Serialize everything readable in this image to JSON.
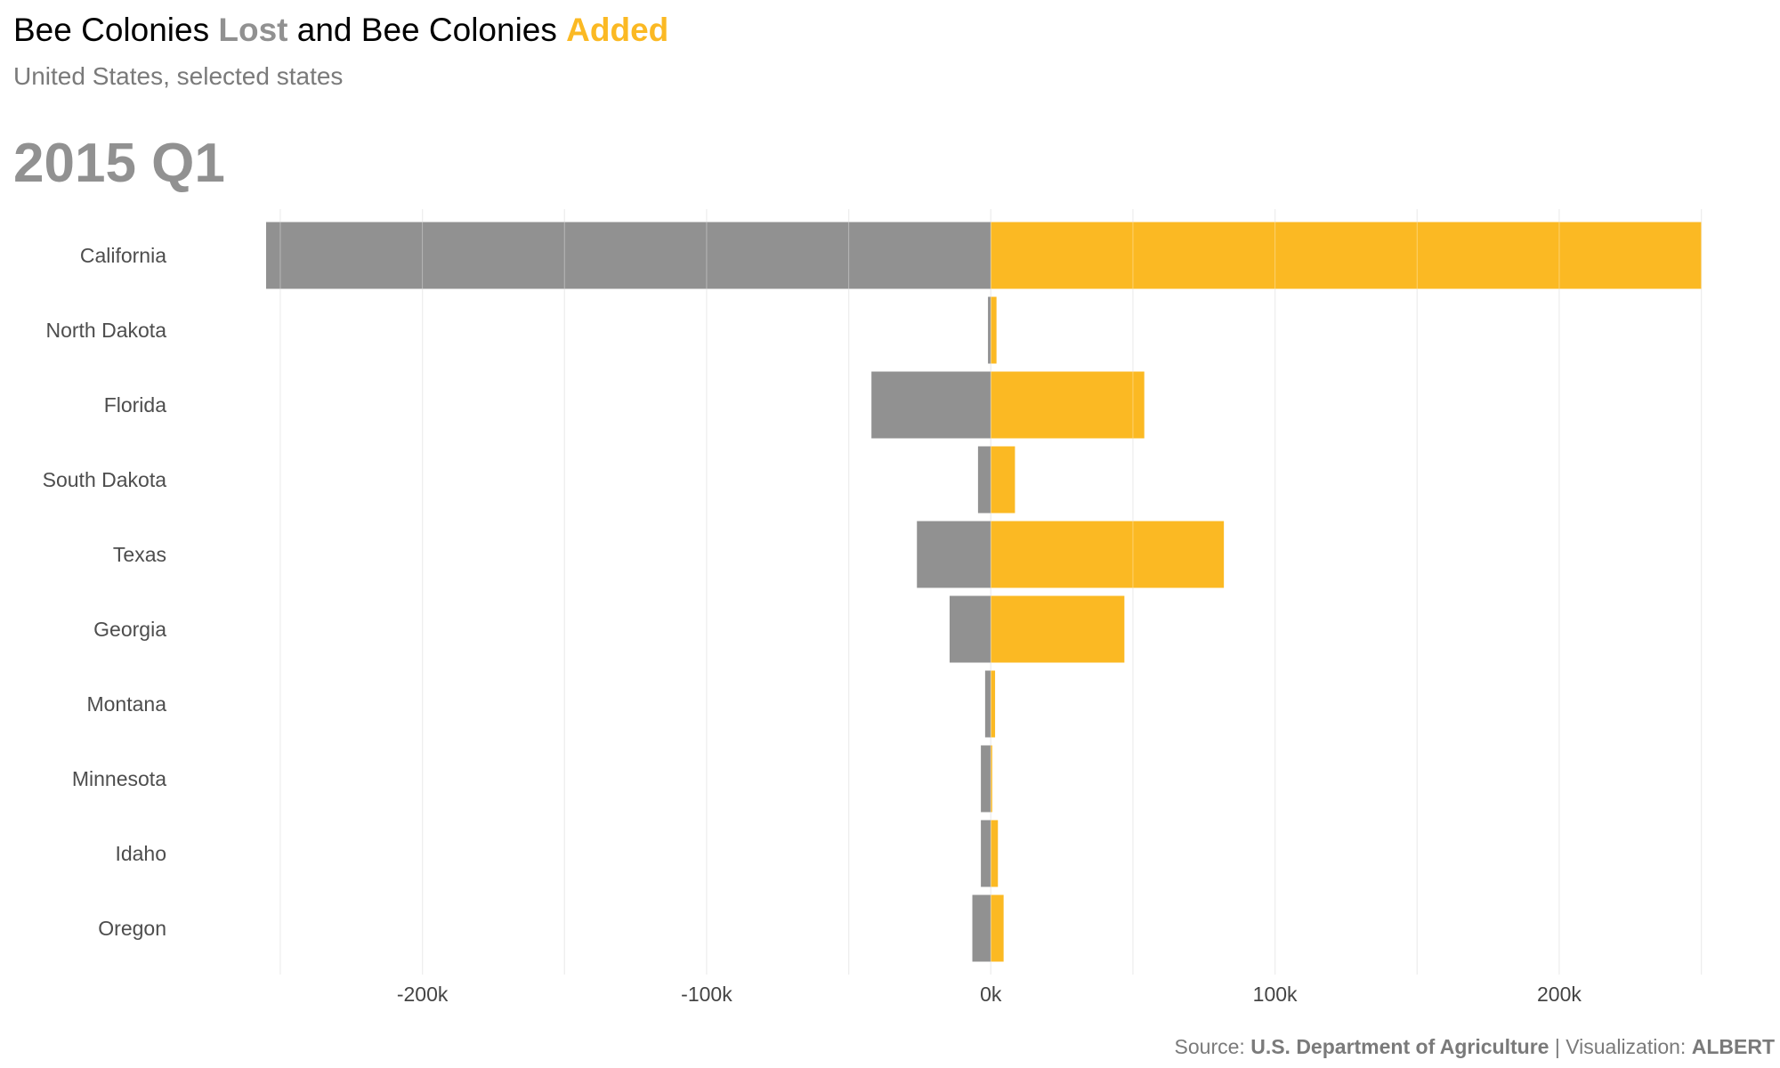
{
  "title": {
    "part1": "Bee Colonies ",
    "lost": "Lost",
    "part2": " and Bee Colonies ",
    "added": "Added"
  },
  "subtitle": "United States, selected states",
  "period": "2015 Q1",
  "caption": {
    "source_label": "Source:",
    "source": "U.S. Department of Agriculture",
    "separator": "|",
    "viz_label": "Visualization:",
    "viz": "ALBERT"
  },
  "colors": {
    "lost": "#919191",
    "added": "#fbb923",
    "grid": "#e6e6e6",
    "tick_text": "#444444",
    "axis_text": "#4d4d4d"
  },
  "chart_data": {
    "type": "bar",
    "orientation": "horizontal",
    "categories": [
      "California",
      "North Dakota",
      "Florida",
      "South Dakota",
      "Texas",
      "Georgia",
      "Montana",
      "Minnesota",
      "Idaho",
      "Oregon"
    ],
    "series": [
      {
        "name": "Lost",
        "values": [
          -255000,
          -1000,
          -42000,
          -4500,
          -26000,
          -14500,
          -2000,
          -3500,
          -3500,
          -6500
        ]
      },
      {
        "name": "Added",
        "values": [
          250000,
          2000,
          54000,
          8500,
          82000,
          47000,
          1500,
          500,
          2500,
          4500
        ]
      }
    ],
    "xlim": [
      -260000,
      252000
    ],
    "xticks": [
      {
        "value": -200000,
        "label": "-200k"
      },
      {
        "value": -100000,
        "label": "-100k"
      },
      {
        "value": 0,
        "label": "0k"
      },
      {
        "value": 100000,
        "label": "100k"
      },
      {
        "value": 200000,
        "label": "200k"
      }
    ],
    "minor_gridlines": [
      -250000,
      -150000,
      -50000,
      50000,
      150000,
      250000
    ],
    "grid": true,
    "legend": "in title"
  }
}
